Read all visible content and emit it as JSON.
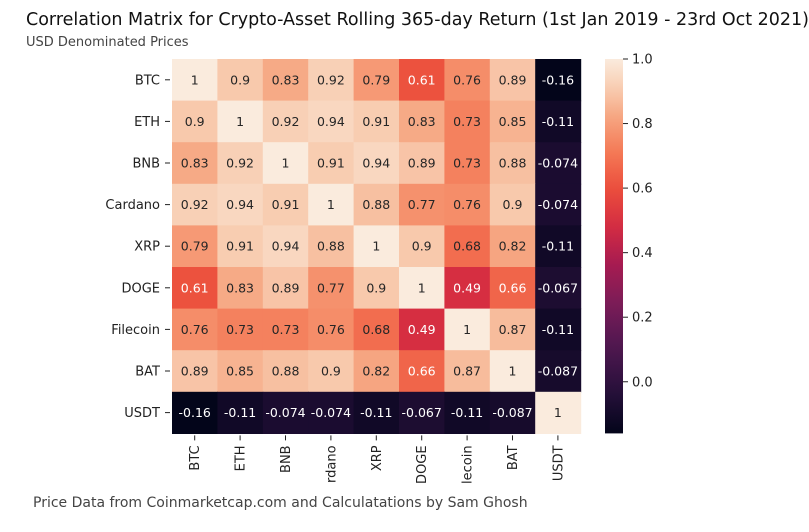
{
  "header": {
    "title": "Correlation Matrix for Crypto-Asset Rolling 365-day Return (1st Jan 2019 - 23rd Oct 2021)",
    "subtitle": "USD Denominated Prices"
  },
  "footer": {
    "text": "Price Data from Coinmarketcap.com and Calculatations by Sam Ghosh"
  },
  "chart_data": {
    "type": "heatmap",
    "row_labels": [
      "BTC",
      "ETH",
      "BNB",
      "Cardano",
      "XRP",
      "DOGE",
      "Filecoin",
      "BAT",
      "USDT"
    ],
    "col_labels": [
      "BTC",
      "ETH",
      "BNB",
      "rdano",
      "XRP",
      "DOGE",
      "lecoin",
      "BAT",
      "USDT"
    ],
    "values": [
      [
        1,
        0.9,
        0.83,
        0.92,
        0.79,
        0.61,
        0.76,
        0.89,
        -0.16
      ],
      [
        0.9,
        1,
        0.92,
        0.94,
        0.91,
        0.83,
        0.73,
        0.85,
        -0.11
      ],
      [
        0.83,
        0.92,
        1,
        0.91,
        0.94,
        0.89,
        0.73,
        0.88,
        -0.074
      ],
      [
        0.92,
        0.94,
        0.91,
        1,
        0.88,
        0.77,
        0.76,
        0.9,
        -0.074
      ],
      [
        0.79,
        0.91,
        0.94,
        0.88,
        1,
        0.9,
        0.68,
        0.82,
        -0.11
      ],
      [
        0.61,
        0.83,
        0.89,
        0.77,
        0.9,
        1,
        0.49,
        0.66,
        -0.067
      ],
      [
        0.76,
        0.73,
        0.73,
        0.76,
        0.68,
        0.49,
        1,
        0.87,
        -0.11
      ],
      [
        0.89,
        0.85,
        0.88,
        0.9,
        0.82,
        0.66,
        0.87,
        1,
        -0.087
      ],
      [
        -0.16,
        -0.11,
        -0.074,
        -0.074,
        -0.11,
        -0.067,
        -0.11,
        -0.087,
        1
      ]
    ],
    "colormap": "rocket",
    "value_range": [
      -0.16,
      1.0
    ],
    "colorbar_ticks": [
      "1.0",
      "0.8",
      "0.6",
      "0.4",
      "0.2",
      "0.0"
    ],
    "colorbar_tick_values": [
      1.0,
      0.8,
      0.6,
      0.4,
      0.2,
      0.0
    ],
    "grid": false
  }
}
